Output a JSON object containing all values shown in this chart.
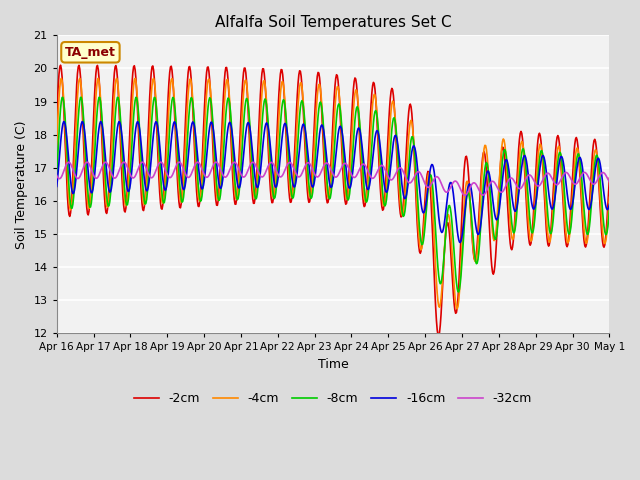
{
  "title": "Alfalfa Soil Temperatures Set C",
  "xlabel": "Time",
  "ylabel": "Soil Temperature (C)",
  "ylim": [
    12.0,
    21.0
  ],
  "yticks": [
    12.0,
    13.0,
    14.0,
    15.0,
    16.0,
    17.0,
    18.0,
    19.0,
    20.0,
    21.0
  ],
  "background_color": "#dcdcdc",
  "plot_bg_color": "#f2f2f2",
  "grid_color": "#ffffff",
  "annotation_text": "TA_met",
  "annotation_box_facecolor": "#ffffcc",
  "annotation_box_edgecolor": "#cc8800",
  "line_colors": {
    "-2cm": "#dd0000",
    "-4cm": "#ff8800",
    "-8cm": "#00cc00",
    "-16cm": "#0000dd",
    "-32cm": "#cc44cc"
  },
  "line_width": 1.2,
  "xtick_labels": [
    "Apr 16",
    "Apr 17",
    "Apr 18",
    "Apr 19",
    "Apr 20",
    "Apr 21",
    "Apr 22",
    "Apr 23",
    "Apr 24",
    "Apr 25",
    "Apr 26",
    "Apr 27",
    "Apr 28",
    "Apr 29",
    "Apr 30",
    "May 1"
  ],
  "num_points": 720,
  "days": 15
}
